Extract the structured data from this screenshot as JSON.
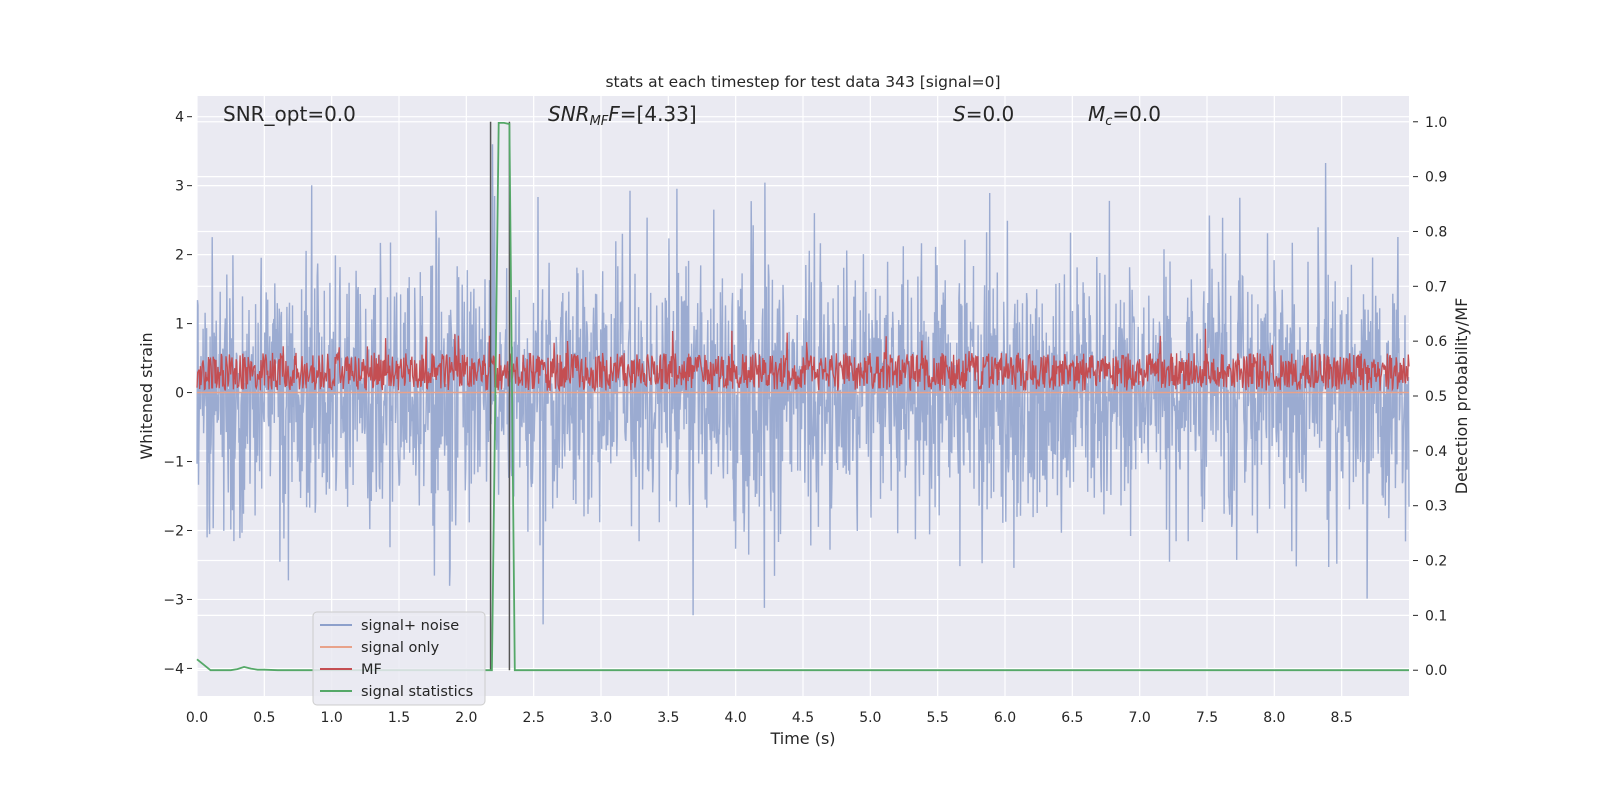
{
  "chart_data": {
    "type": "line",
    "title": "stats at each timestep for test data 343 [signal=0]",
    "xlabel": "Time (s)",
    "ylabel": "Whitened strain",
    "ylabel_right": "Detection probability/MF",
    "xlim": [
      0.0,
      9.0
    ],
    "ylim": [
      -4.4,
      4.3
    ],
    "ylim_right": [
      -0.047,
      1.047
    ],
    "xticks": [
      "0.0",
      "0.5",
      "1.0",
      "1.5",
      "2.0",
      "2.5",
      "3.0",
      "3.5",
      "4.0",
      "4.5",
      "5.0",
      "5.5",
      "6.0",
      "6.5",
      "7.0",
      "7.5",
      "8.0",
      "8.5"
    ],
    "xtick_values": [
      0.0,
      0.5,
      1.0,
      1.5,
      2.0,
      2.5,
      3.0,
      3.5,
      4.0,
      4.5,
      5.0,
      5.5,
      6.0,
      6.5,
      7.0,
      7.5,
      8.0,
      8.5
    ],
    "yticks_left": [
      "4",
      "3",
      "2",
      "1",
      "0",
      "−1",
      "−2",
      "−3",
      "−4"
    ],
    "ytick_values_left": [
      4,
      3,
      2,
      1,
      0,
      -1,
      -2,
      -3,
      -4
    ],
    "yticks_right": [
      "1.0",
      "0.9",
      "0.8",
      "0.7",
      "0.6",
      "0.5",
      "0.4",
      "0.3",
      "0.2",
      "0.1",
      "0.0"
    ],
    "ytick_values_right": [
      1.0,
      0.9,
      0.8,
      0.7,
      0.6,
      0.5,
      0.4,
      0.3,
      0.2,
      0.1,
      0.0
    ],
    "grid": true,
    "legend_position": "lower-left",
    "annotations": {
      "snr_opt": "SNR_opt=0.0",
      "snr_mf_main": "SNR",
      "snr_mf_sub": "MF",
      "snr_mf_tail": "=[4.33]",
      "s_main": "S",
      "s_tail": "=0.0",
      "mc_main": "M",
      "mc_sub": "c",
      "mc_tail": "=0.0"
    },
    "colors": {
      "noise": "#8da0cb",
      "signal_only": "#e8a28a",
      "mf": "#c44e52",
      "stats": "#55a868",
      "background": "#eaeaf2",
      "vline": "#555555"
    },
    "series": [
      {
        "name": "signal+ noise",
        "axis": "left",
        "description_values": "dense noise, roughly |y| <= 3.5, band mostly within ±1.7",
        "range": [
          -4.0,
          3.6
        ]
      },
      {
        "name": "signal only",
        "axis": "left",
        "x": [
          0.0,
          9.0
        ],
        "y": [
          0.0,
          0.0
        ]
      },
      {
        "name": "MF",
        "axis": "left",
        "range": [
          0.0,
          1.0
        ],
        "mean": 0.3
      },
      {
        "name": "signal statistics",
        "axis": "right",
        "x": [
          0.0,
          0.05,
          0.1,
          0.15,
          0.2,
          0.25,
          0.3,
          0.35,
          0.4,
          0.45,
          0.5,
          0.6,
          1.0,
          2.0,
          2.19,
          2.24,
          2.28,
          2.32,
          2.36,
          2.4,
          3.0,
          5.0,
          8.5,
          9.0
        ],
        "y": [
          0.02,
          0.01,
          0.0,
          0.0,
          0.0,
          0.0,
          0.002,
          0.006,
          0.003,
          0.001,
          0.001,
          0.0,
          0.0,
          0.0,
          0.0,
          0.998,
          0.998,
          0.996,
          0.0,
          0.0,
          0.0,
          0.0,
          0.0,
          0.0
        ]
      }
    ],
    "vlines": [
      2.18,
      2.32
    ],
    "legend": [
      "signal+ noise",
      "signal only",
      "MF",
      "signal statistics"
    ]
  }
}
